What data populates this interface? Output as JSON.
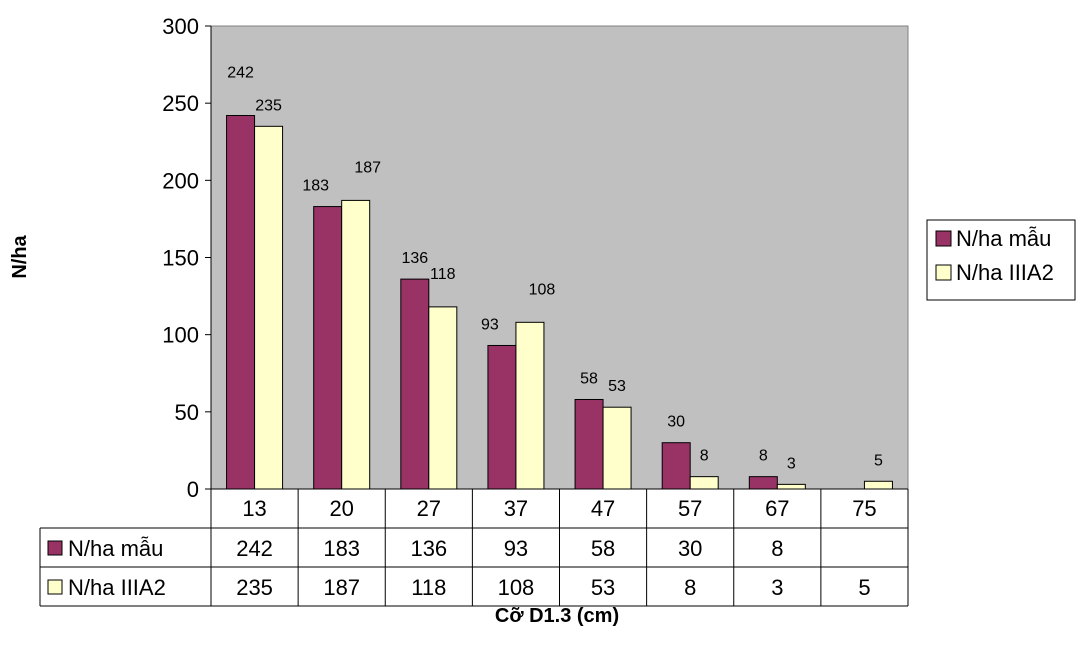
{
  "chart_data": {
    "type": "bar",
    "xlabel": "Cỡ D1.3 (cm)",
    "ylabel": "N/ha",
    "ylim": [
      0,
      300
    ],
    "yticks": [
      0,
      50,
      100,
      150,
      200,
      250,
      300
    ],
    "categories": [
      "13",
      "20",
      "27",
      "37",
      "47",
      "57",
      "67",
      "75"
    ],
    "series": [
      {
        "name": "N/ha mẫu",
        "color": "#993366",
        "values": [
          242,
          183,
          136,
          93,
          58,
          30,
          8,
          null
        ]
      },
      {
        "name": "N/ha IIIA2",
        "color": "#FFFFCC",
        "values": [
          235,
          187,
          118,
          108,
          53,
          8,
          3,
          5
        ]
      }
    ],
    "legend_position": "right",
    "data_table": true,
    "plot_background": "#C0C0C0",
    "grid": false
  }
}
